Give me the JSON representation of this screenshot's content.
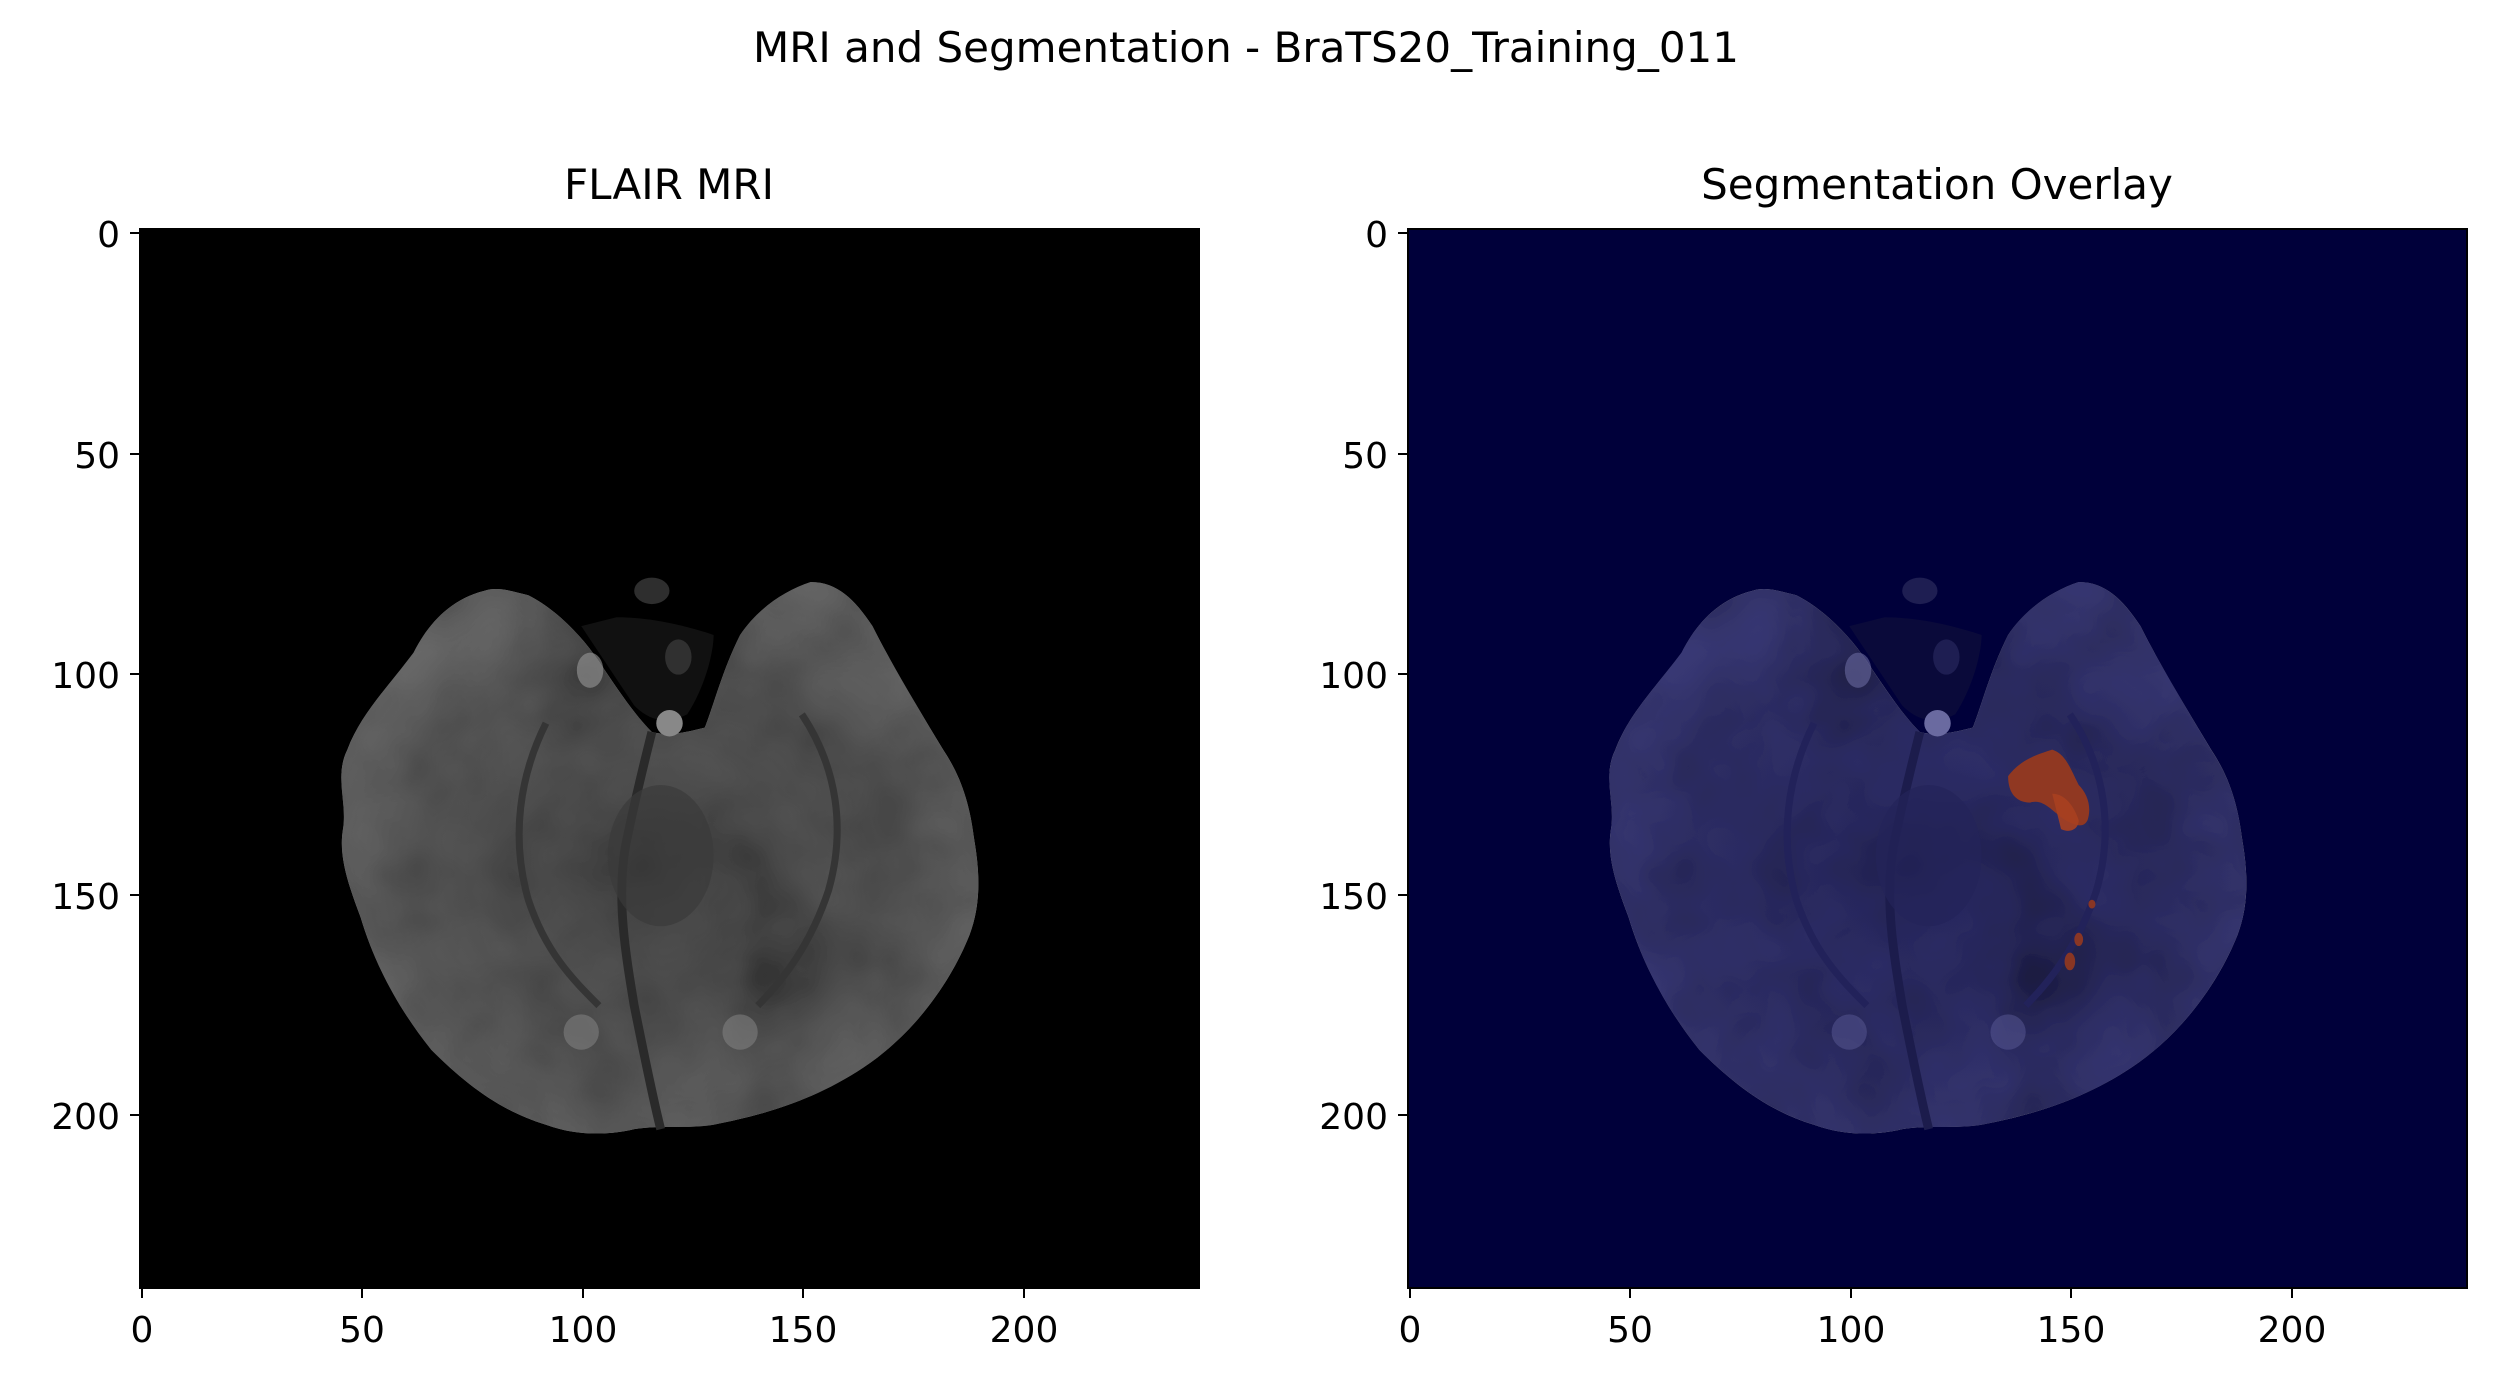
{
  "figure": {
    "suptitle": "MRI and Segmentation - BraTS20_Training_011"
  },
  "panels": [
    {
      "title": "FLAIR MRI",
      "background": "#000000",
      "x_ticks": [
        "0",
        "50",
        "100",
        "150",
        "200"
      ],
      "y_ticks": [
        "0",
        "50",
        "100",
        "150",
        "200"
      ],
      "colormap": "gray"
    },
    {
      "title": "Segmentation Overlay",
      "background": "#00003a",
      "x_ticks": [
        "0",
        "50",
        "100",
        "150",
        "200"
      ],
      "y_ticks": [
        "0",
        "50",
        "100",
        "150",
        "200"
      ],
      "colormap": "jet overlay",
      "segmentation_color": "#9b3a1c"
    }
  ],
  "image_extent": {
    "width": 240,
    "height": 240
  },
  "colors": {
    "brain_gray": "#5a5a5a",
    "brain_overlay": "#34346e",
    "dark_voids": "#141414",
    "dark_voids_overlay": "#0e0e3c"
  }
}
